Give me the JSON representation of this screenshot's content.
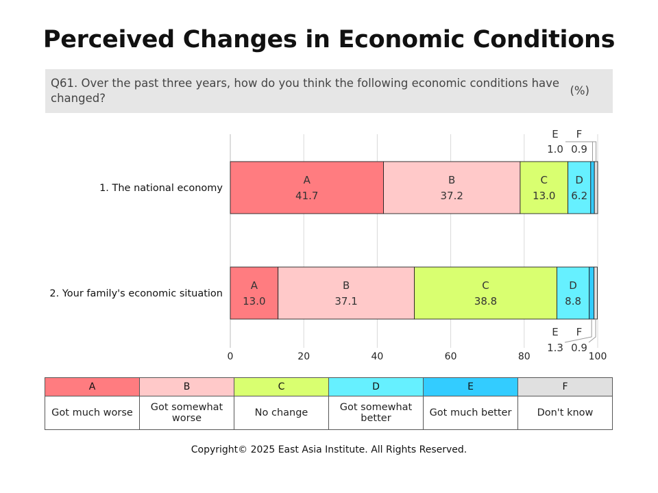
{
  "title": "Perceived Changes in Economic Conditions",
  "question": {
    "text": "Q61. Over the past three years, how do you think the following economic conditions have changed?",
    "unit": "(%)"
  },
  "chart_data": {
    "type": "bar",
    "orientation": "horizontal",
    "stacked": true,
    "categories": [
      "1. The national economy",
      "2. Your family's economic situation"
    ],
    "series": [
      {
        "name": "A",
        "values": [
          41.7,
          13.0
        ],
        "color": "#ff7c80"
      },
      {
        "name": "B",
        "values": [
          37.2,
          37.1
        ],
        "color": "#ffc9c9"
      },
      {
        "name": "C",
        "values": [
          13.0,
          38.8
        ],
        "color": "#d9ff70"
      },
      {
        "name": "D",
        "values": [
          6.2,
          8.8
        ],
        "color": "#66f0ff"
      },
      {
        "name": "E",
        "values": [
          1.0,
          1.3
        ],
        "color": "#33ccff"
      },
      {
        "name": "F",
        "values": [
          0.9,
          0.9
        ],
        "color": "#e0e0e0"
      }
    ],
    "xlim": [
      0,
      100
    ],
    "xticks": [
      0,
      20,
      40,
      60,
      80,
      100
    ],
    "grid": true
  },
  "legend": {
    "headers": [
      "A",
      "B",
      "C",
      "D",
      "E",
      "F"
    ],
    "labels": [
      "Got much worse",
      "Got somewhat worse",
      "No change",
      "Got somewhat better",
      "Got much better",
      "Don't know"
    ],
    "colors": [
      "#ff7c80",
      "#ffc9c9",
      "#d9ff70",
      "#66f0ff",
      "#33ccff",
      "#e0e0e0"
    ]
  },
  "copyright": "Copyright© 2025 East Asia Institute. All Rights Reserved."
}
